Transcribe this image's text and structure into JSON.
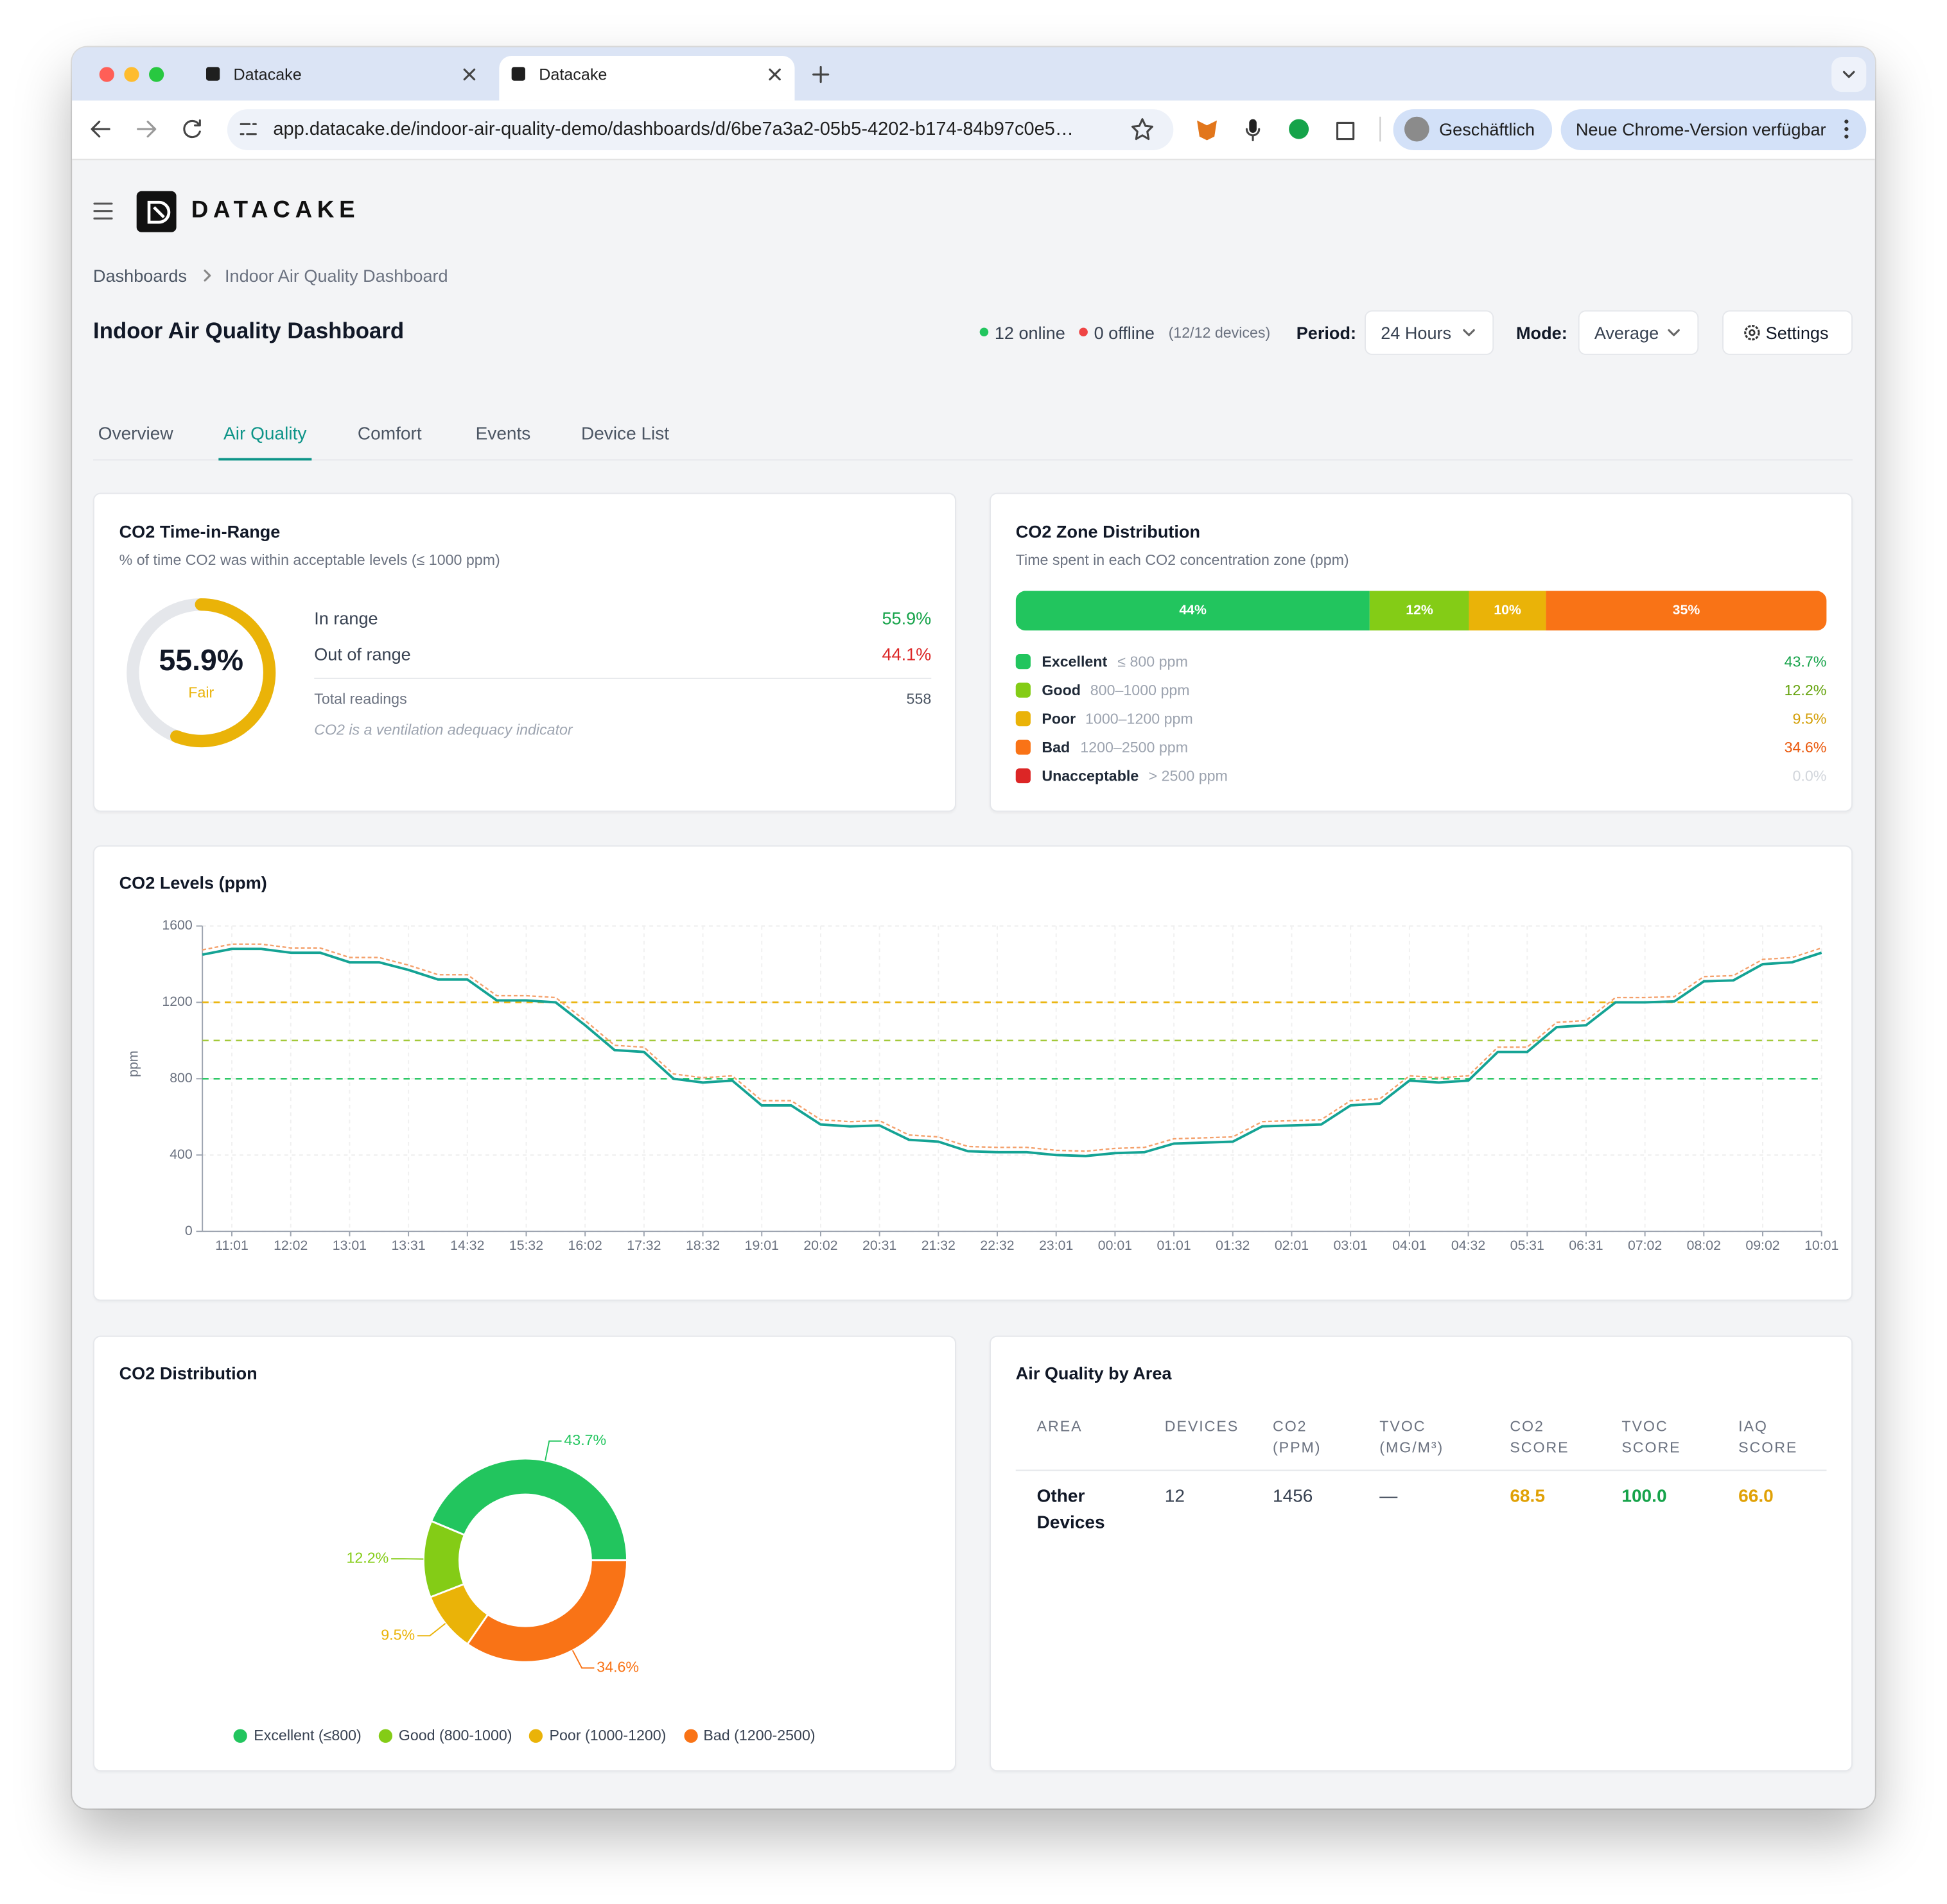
{
  "browser": {
    "tabs": [
      "Datacake",
      "Datacake"
    ],
    "url": "app.datacake.de/indoor-air-quality-demo/dashboards/d/6be7a3a2-05b5-4202-b174-84b97c0e5…",
    "profile": "Geschäftlich",
    "update": "Neue Chrome-Version verfügbar"
  },
  "header": {
    "brand": "DATACAKE",
    "breadcrumbs": [
      "Dashboards",
      "Indoor Air Quality Dashboard"
    ],
    "title": "Indoor Air Quality Dashboard",
    "online": "12 online",
    "offline": "0 offline",
    "devices": "(12/12 devices)",
    "period_label": "Period:",
    "period": "24 Hours",
    "mode_label": "Mode:",
    "mode": "Average",
    "settings": "Settings"
  },
  "tabs": {
    "items": [
      "Overview",
      "Air Quality",
      "Comfort",
      "Events",
      "Device List"
    ],
    "active": 1
  },
  "time_in_range": {
    "title": "CO2 Time-in-Range",
    "subtitle": "% of time CO2 was within acceptable levels (≤ 1000 ppm)",
    "gauge": {
      "type": "gauge",
      "value": 55.9,
      "value_label": "55.9%",
      "range": [
        0,
        100
      ],
      "rating": "Fair",
      "color": "#eab308",
      "track_color": "#e5e7eb"
    },
    "rows": [
      {
        "label": "In range",
        "value": "55.9%",
        "color": "#16a34a"
      },
      {
        "label": "Out of range",
        "value": "44.1%",
        "color": "#dc2626"
      }
    ],
    "total_label": "Total readings",
    "total": "558",
    "note": "CO2 is a ventilation adequacy indicator"
  },
  "zone_distribution": {
    "type": "stacked-bar",
    "title": "CO2 Zone Distribution",
    "subtitle": "Time spent in each CO2 concentration zone (ppm)",
    "zones": [
      {
        "name": "Excellent",
        "range": "≤ 800 ppm",
        "value": 43.7,
        "value_label": "43.7%",
        "bar_label": "44%",
        "color": "#22c55e",
        "text_color": "#16a34a"
      },
      {
        "name": "Good",
        "range": "800–1000 ppm",
        "value": 12.2,
        "value_label": "12.2%",
        "bar_label": "12%",
        "color": "#84cc16",
        "text_color": "#65a30d"
      },
      {
        "name": "Poor",
        "range": "1000–1200 ppm",
        "value": 9.5,
        "value_label": "9.5%",
        "bar_label": "10%",
        "color": "#eab308",
        "text_color": "#d39e06"
      },
      {
        "name": "Bad",
        "range": "1200–2500 ppm",
        "value": 34.6,
        "value_label": "34.6%",
        "bar_label": "35%",
        "color": "#f97316",
        "text_color": "#ea580c"
      },
      {
        "name": "Unacceptable",
        "range": "> 2500 ppm",
        "value": 0,
        "value_label": "0.0%",
        "color": "#dc2626",
        "text_color": "#d1d5db"
      }
    ]
  },
  "co2_levels": {
    "type": "line",
    "title": "CO2 Levels (ppm)",
    "y_label": "ppm",
    "ylim": [
      0,
      1600
    ],
    "yticks": [
      0,
      400,
      800,
      1200,
      1600
    ],
    "grid": true,
    "categories": [
      null,
      "11:01",
      null,
      "12:02",
      null,
      "13:01",
      null,
      "13:31",
      null,
      "14:32",
      null,
      "15:32",
      null,
      "16:02",
      null,
      "17:32",
      null,
      "18:32",
      null,
      "19:01",
      null,
      "20:02",
      null,
      "20:31",
      null,
      "21:32",
      null,
      "22:32",
      null,
      "23:01",
      null,
      "00:01",
      null,
      "01:01",
      null,
      "01:32",
      null,
      "02:01",
      null,
      "03:01",
      null,
      "04:01",
      null,
      "04:32",
      null,
      "05:31",
      null,
      "06:31",
      null,
      "07:02",
      null,
      "08:02",
      null,
      "09:02",
      null,
      "10:01"
    ],
    "thresholds": [
      {
        "value": 1200,
        "color": "#eab308"
      },
      {
        "value": 1000,
        "color": "#a3c93a"
      },
      {
        "value": 800,
        "color": "#22c55e"
      }
    ],
    "series": [
      {
        "color": "#f4a06b",
        "style": "dashed",
        "values": [
          1475,
          1505,
          1505,
          1485,
          1485,
          1435,
          1435,
          1395,
          1345,
          1345,
          1235,
          1235,
          1225,
          1105,
          975,
          965,
          825,
          805,
          815,
          685,
          685,
          585,
          575,
          580,
          505,
          495,
          445,
          440,
          440,
          425,
          420,
          435,
          440,
          485,
          490,
          495,
          575,
          580,
          585,
          685,
          695,
          815,
          805,
          815,
          965,
          965,
          1095,
          1105,
          1225,
          1225,
          1230,
          1335,
          1340,
          1425,
          1435,
          1485
        ]
      },
      {
        "color": "#14a394",
        "style": "solid",
        "values": [
          1450,
          1480,
          1480,
          1460,
          1460,
          1410,
          1410,
          1370,
          1320,
          1320,
          1210,
          1210,
          1200,
          1080,
          950,
          940,
          800,
          780,
          790,
          660,
          660,
          560,
          550,
          555,
          480,
          470,
          420,
          415,
          415,
          400,
          395,
          410,
          415,
          460,
          465,
          470,
          550,
          555,
          560,
          660,
          670,
          790,
          780,
          790,
          940,
          940,
          1070,
          1080,
          1200,
          1200,
          1205,
          1310,
          1315,
          1400,
          1410,
          1460
        ]
      }
    ]
  },
  "co2_distribution": {
    "type": "donut",
    "title": "CO2 Distribution",
    "categories": [
      "Excellent (≤800)",
      "Good (800-1000)",
      "Poor (1000-1200)",
      "Bad (1200-2500)"
    ],
    "values": [
      43.7,
      12.2,
      9.5,
      34.6
    ],
    "value_labels": [
      "43.7%",
      "12.2%",
      "9.5%",
      "34.6%"
    ],
    "colors": [
      "#22c55e",
      "#84cc16",
      "#eab308",
      "#f97316"
    ]
  },
  "area_table": {
    "title": "Air Quality by Area",
    "columns": [
      "AREA",
      "DEVICES",
      "CO2 (PPM)",
      "TVOC (MG/M³)",
      "CO2 SCORE",
      "TVOC SCORE",
      "IAQ SCORE"
    ],
    "rows": [
      {
        "cells": [
          "Other Devices",
          "12",
          "1456",
          "—",
          "68.5",
          "100.0",
          "66.0"
        ],
        "colors": [
          "#111827",
          "#374151",
          "#374151",
          "#374151",
          "#e0a106",
          "#16a34a",
          "#e0a106"
        ]
      }
    ]
  }
}
